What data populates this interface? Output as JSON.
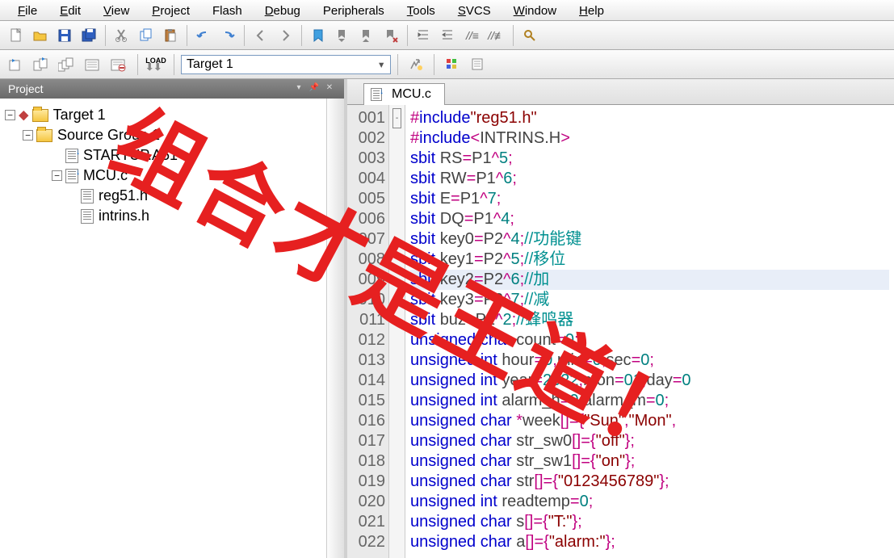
{
  "menus": [
    "File",
    "Edit",
    "View",
    "Project",
    "Flash",
    "Debug",
    "Peripherals",
    "Tools",
    "SVCS",
    "Window",
    "Help"
  ],
  "menu_hotkeys": [
    "F",
    "E",
    "V",
    "P",
    "",
    "D",
    "",
    "T",
    "S",
    "W",
    "H"
  ],
  "target_selected": "Target 1",
  "project_panel_title": "Project",
  "tree": {
    "root": "Target 1",
    "group": "Source Group 1",
    "files": [
      "STARTUP.A51",
      "MCU.c"
    ],
    "includes": [
      "reg51.h",
      "intrins.h"
    ]
  },
  "tab_name": "MCU.c",
  "overlay_text": "组合才是王道！",
  "code_lines": [
    {
      "n": "001",
      "fold": "-",
      "tokens": [
        [
          "punc",
          "#"
        ],
        [
          "kw",
          "include"
        ],
        [
          "str",
          "\"reg51.h\""
        ]
      ]
    },
    {
      "n": "002",
      "tokens": [
        [
          "punc",
          "#"
        ],
        [
          "kw",
          "include"
        ],
        [
          "punc",
          "<"
        ],
        [
          "iden",
          "INTRINS.H"
        ],
        [
          "punc",
          ">"
        ]
      ]
    },
    {
      "n": "003",
      "tokens": [
        [
          "kw",
          "sbit "
        ],
        [
          "iden",
          "RS"
        ],
        [
          "punc",
          "="
        ],
        [
          "iden",
          "P1"
        ],
        [
          "punc",
          "^"
        ],
        [
          "num",
          "5"
        ],
        [
          "punc",
          ";"
        ]
      ]
    },
    {
      "n": "004",
      "tokens": [
        [
          "kw",
          "sbit "
        ],
        [
          "iden",
          "RW"
        ],
        [
          "punc",
          "="
        ],
        [
          "iden",
          "P1"
        ],
        [
          "punc",
          "^"
        ],
        [
          "num",
          "6"
        ],
        [
          "punc",
          ";"
        ]
      ]
    },
    {
      "n": "005",
      "tokens": [
        [
          "kw",
          "sbit "
        ],
        [
          "iden",
          "E"
        ],
        [
          "punc",
          "="
        ],
        [
          "iden",
          "P1"
        ],
        [
          "punc",
          "^"
        ],
        [
          "num",
          "7"
        ],
        [
          "punc",
          ";"
        ]
      ]
    },
    {
      "n": "006",
      "tokens": [
        [
          "kw",
          "sbit "
        ],
        [
          "iden",
          "DQ"
        ],
        [
          "punc",
          "="
        ],
        [
          "iden",
          "P1"
        ],
        [
          "punc",
          "^"
        ],
        [
          "num",
          "4"
        ],
        [
          "punc",
          ";"
        ]
      ]
    },
    {
      "n": "007",
      "tokens": [
        [
          "kw",
          "sbit "
        ],
        [
          "iden",
          "key0"
        ],
        [
          "punc",
          "="
        ],
        [
          "iden",
          "P2"
        ],
        [
          "punc",
          "^"
        ],
        [
          "num",
          "4"
        ],
        [
          "punc",
          ";"
        ],
        [
          "cmt",
          "//功能键"
        ]
      ]
    },
    {
      "n": "008",
      "tokens": [
        [
          "kw",
          "sbit "
        ],
        [
          "iden",
          "key1"
        ],
        [
          "punc",
          "="
        ],
        [
          "iden",
          "P2"
        ],
        [
          "punc",
          "^"
        ],
        [
          "num",
          "5"
        ],
        [
          "punc",
          ";"
        ],
        [
          "cmt",
          "//移位"
        ]
      ]
    },
    {
      "n": "009",
      "hl": true,
      "tokens": [
        [
          "kw",
          "sbit "
        ],
        [
          "iden",
          "key2"
        ],
        [
          "punc",
          "="
        ],
        [
          "iden",
          "P2"
        ],
        [
          "punc",
          "^"
        ],
        [
          "num",
          "6"
        ],
        [
          "punc",
          ";"
        ],
        [
          "cmt",
          "//加"
        ]
      ]
    },
    {
      "n": "010",
      "tokens": [
        [
          "kw",
          "sbit "
        ],
        [
          "iden",
          "key3"
        ],
        [
          "punc",
          "="
        ],
        [
          "iden",
          "P2"
        ],
        [
          "punc",
          "^"
        ],
        [
          "num",
          "7"
        ],
        [
          "punc",
          ";"
        ],
        [
          "cmt",
          "//减"
        ]
      ]
    },
    {
      "n": "011",
      "tokens": [
        [
          "kw",
          "sbit "
        ],
        [
          "iden",
          "buz"
        ],
        [
          "punc",
          "="
        ],
        [
          "iden",
          "P1"
        ],
        [
          "punc",
          "^"
        ],
        [
          "num",
          "2"
        ],
        [
          "punc",
          ";"
        ],
        [
          "cmt",
          "//蜂鸣器"
        ]
      ]
    },
    {
      "n": "012",
      "tokens": [
        [
          "kw",
          "unsigned char "
        ],
        [
          "iden",
          "count"
        ],
        [
          "punc",
          "="
        ],
        [
          "num",
          "0"
        ],
        [
          "punc",
          ";"
        ]
      ]
    },
    {
      "n": "013",
      "tokens": [
        [
          "kw",
          "unsigned int "
        ],
        [
          "iden",
          "hour"
        ],
        [
          "punc",
          "="
        ],
        [
          "num",
          "0"
        ],
        [
          "punc",
          ","
        ],
        [
          "iden",
          "min"
        ],
        [
          "punc",
          "="
        ],
        [
          "num",
          "0"
        ],
        [
          "punc",
          ","
        ],
        [
          "iden",
          "sec"
        ],
        [
          "punc",
          "="
        ],
        [
          "num",
          "0"
        ],
        [
          "punc",
          ";"
        ]
      ]
    },
    {
      "n": "014",
      "tokens": [
        [
          "kw",
          "unsigned int "
        ],
        [
          "iden",
          "year"
        ],
        [
          "punc",
          "="
        ],
        [
          "num",
          "2022"
        ],
        [
          "punc",
          ","
        ],
        [
          "iden",
          "mon"
        ],
        [
          "punc",
          "="
        ],
        [
          "num",
          "01"
        ],
        [
          "punc",
          ","
        ],
        [
          "iden",
          "day"
        ],
        [
          "punc",
          "="
        ],
        [
          "num",
          "0"
        ]
      ]
    },
    {
      "n": "015",
      "tokens": [
        [
          "kw",
          "unsigned int "
        ],
        [
          "iden",
          "alarm_h"
        ],
        [
          "punc",
          "="
        ],
        [
          "num",
          "0"
        ],
        [
          "punc",
          ","
        ],
        [
          "iden",
          "alarm_m"
        ],
        [
          "punc",
          "="
        ],
        [
          "num",
          "0"
        ],
        [
          "punc",
          ";"
        ]
      ]
    },
    {
      "n": "016",
      "tokens": [
        [
          "kw",
          "unsigned char "
        ],
        [
          "punc",
          "*"
        ],
        [
          "iden",
          "week"
        ],
        [
          "punc",
          "[]={"
        ],
        [
          "str",
          "\"Sun\""
        ],
        [
          "punc",
          ","
        ],
        [
          "str",
          "\"Mon\""
        ],
        [
          "punc",
          ","
        ]
      ]
    },
    {
      "n": "017",
      "tokens": [
        [
          "kw",
          "unsigned char "
        ],
        [
          "iden",
          "str_sw0"
        ],
        [
          "punc",
          "[]={"
        ],
        [
          "str",
          "\"off\""
        ],
        [
          "punc",
          "};"
        ]
      ]
    },
    {
      "n": "018",
      "tokens": [
        [
          "kw",
          "unsigned char "
        ],
        [
          "iden",
          "str_sw1"
        ],
        [
          "punc",
          "[]={"
        ],
        [
          "str",
          "\"on\""
        ],
        [
          "punc",
          "};"
        ]
      ]
    },
    {
      "n": "019",
      "tokens": [
        [
          "kw",
          "unsigned char "
        ],
        [
          "iden",
          "str"
        ],
        [
          "punc",
          "[]={"
        ],
        [
          "str",
          "\"0123456789\""
        ],
        [
          "punc",
          "};"
        ]
      ]
    },
    {
      "n": "020",
      "tokens": [
        [
          "kw",
          "unsigned int "
        ],
        [
          "iden",
          "readtemp"
        ],
        [
          "punc",
          "="
        ],
        [
          "num",
          "0"
        ],
        [
          "punc",
          ";"
        ]
      ]
    },
    {
      "n": "021",
      "tokens": [
        [
          "kw",
          "unsigned char "
        ],
        [
          "iden",
          "s"
        ],
        [
          "punc",
          "[]={"
        ],
        [
          "str",
          "\"T:\""
        ],
        [
          "punc",
          "};"
        ]
      ]
    },
    {
      "n": "022",
      "tokens": [
        [
          "kw",
          "unsigned char "
        ],
        [
          "iden",
          "a"
        ],
        [
          "punc",
          "[]={"
        ],
        [
          "str",
          "\"alarm:\""
        ],
        [
          "punc",
          "};"
        ]
      ]
    }
  ],
  "colors": {
    "kw": "#0000cc",
    "str": "#8b0000",
    "punc": "#c00080",
    "num": "#008080",
    "cmt": "#009090",
    "overlay": "#e62020"
  }
}
